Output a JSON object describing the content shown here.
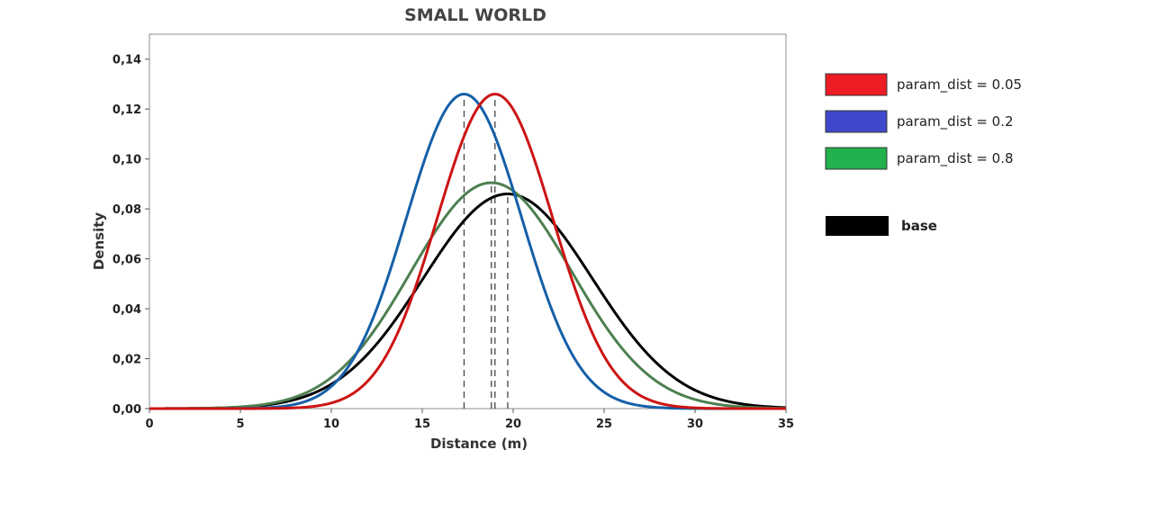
{
  "chart_data": {
    "type": "line",
    "title": "SMALL WORLD",
    "xlabel": "Distance (m)",
    "ylabel": "Density",
    "xlim": [
      0,
      35
    ],
    "ylim": [
      0,
      0.15
    ],
    "x_ticks": [
      "0",
      "5",
      "10",
      "15",
      "20",
      "25",
      "30",
      "35"
    ],
    "y_ticks": [
      "0,00",
      "0,02",
      "0,04",
      "0,06",
      "0,08",
      "0,10",
      "0,12",
      "0,14"
    ],
    "grid": false,
    "legend_position": "right",
    "series": [
      {
        "name": "param_dist = 0.05",
        "distribution": "normal",
        "mean": 19.0,
        "std": 3.17,
        "peak": 0.126,
        "color": "#cc1414",
        "legend_color": "#ee1c25"
      },
      {
        "name": "param_dist = 0.2",
        "distribution": "normal",
        "mean": 17.3,
        "std": 3.17,
        "peak": 0.126,
        "color": "#1560a8",
        "legend_color": "#3f48cc"
      },
      {
        "name": "param_dist = 0.8",
        "distribution": "normal",
        "mean": 18.8,
        "std": 4.42,
        "peak": 0.0905,
        "color": "#4d8050",
        "legend_color": "#22b14c"
      },
      {
        "name": "base",
        "distribution": "normal",
        "mean": 19.7,
        "std": 4.65,
        "peak": 0.086,
        "color": "#000000",
        "legend_color": "#000000"
      }
    ],
    "reference_lines": [
      {
        "x": 17.3,
        "style": "dashed"
      },
      {
        "x": 18.8,
        "style": "dashed"
      },
      {
        "x": 19.0,
        "style": "dashed"
      },
      {
        "x": 19.7,
        "style": "dashed"
      }
    ]
  }
}
